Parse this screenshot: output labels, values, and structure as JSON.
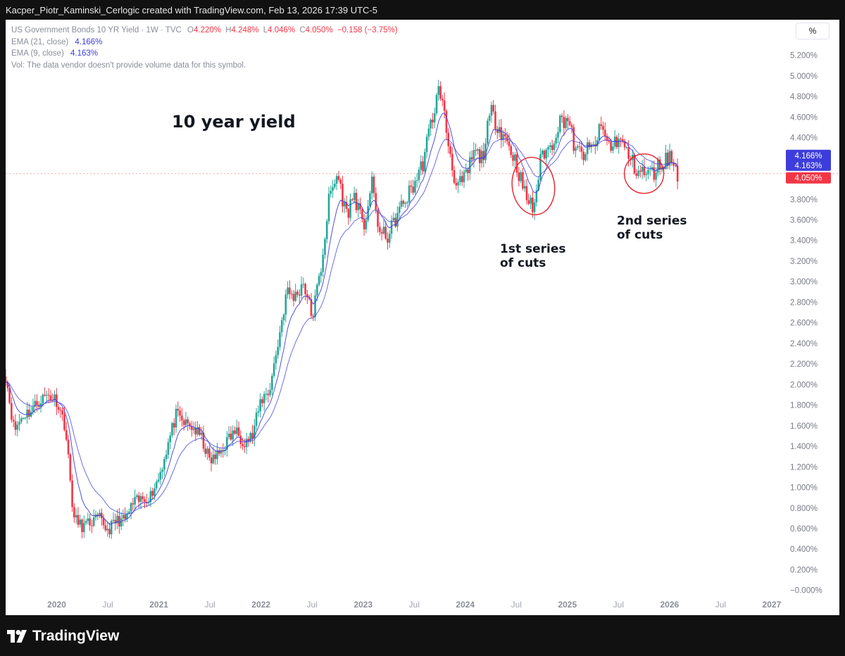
{
  "credit": "Kacper_Piotr_Kaminski_Cerlogic created with TradingView.com, Feb 13, 2026 17:39 UTC-5",
  "legend": {
    "symbol": "US Government Bonds 10 YR Yield · 1W · TVC",
    "o_label": "O",
    "o_value": "4.220%",
    "h_label": "H",
    "h_value": "4.248%",
    "l_label": "L",
    "l_value": "4.046%",
    "c_label": "C",
    "c_value": "4.050%",
    "change": "−0.158 (−3.75%)",
    "ema21_label": "EMA (21, close)",
    "ema21_value": "4.166%",
    "ema9_label": "EMA (9, close)",
    "ema9_value": "4.163%",
    "vol_note": "Vol: The data vendor doesn't provide volume data for this symbol."
  },
  "scale_button": "%",
  "annotations": {
    "title": "10 year yield",
    "first_line1": "1st series",
    "first_line2": "of cuts",
    "second_line1": "2nd series",
    "second_line2": "of cuts"
  },
  "footer": {
    "brand": "TradingView"
  },
  "colors": {
    "up": "#26a69a",
    "down": "#f23645",
    "ema": "#3d3ddb",
    "marker": "#e8202a"
  },
  "chart_data": {
    "type": "line",
    "chart_kind": "candlestick",
    "interval": "1W",
    "y_unit": "%",
    "y_scale": "linear",
    "ylim": [
      -0.05,
      5.3
    ],
    "y_ticks": [
      "5.200%",
      "5.000%",
      "4.800%",
      "4.600%",
      "4.400%",
      "4.200%",
      "4.000%",
      "3.800%",
      "3.600%",
      "3.400%",
      "3.200%",
      "3.000%",
      "2.800%",
      "2.600%",
      "2.400%",
      "2.200%",
      "2.000%",
      "1.800%",
      "1.600%",
      "1.400%",
      "1.200%",
      "1.000%",
      "0.800%",
      "0.600%",
      "0.400%",
      "0.200%",
      "−0.000%"
    ],
    "x_range": [
      "2019-07",
      "2027-02"
    ],
    "x_ticks": [
      {
        "date": "2020-01",
        "label": "2020",
        "major": true
      },
      {
        "date": "2020-07",
        "label": "Jul",
        "major": false
      },
      {
        "date": "2021-01",
        "label": "2021",
        "major": true
      },
      {
        "date": "2021-07",
        "label": "Jul",
        "major": false
      },
      {
        "date": "2022-01",
        "label": "2022",
        "major": true
      },
      {
        "date": "2022-07",
        "label": "Jul",
        "major": false
      },
      {
        "date": "2023-01",
        "label": "2023",
        "major": true
      },
      {
        "date": "2023-07",
        "label": "Jul",
        "major": false
      },
      {
        "date": "2024-01",
        "label": "2024",
        "major": true
      },
      {
        "date": "2024-07",
        "label": "Jul",
        "major": false
      },
      {
        "date": "2025-01",
        "label": "2025",
        "major": true
      },
      {
        "date": "2025-07",
        "label": "Jul",
        "major": false
      },
      {
        "date": "2026-01",
        "label": "2026",
        "major": true
      },
      {
        "date": "2026-07",
        "label": "Jul",
        "major": false
      },
      {
        "date": "2027-01",
        "label": "2027",
        "major": true
      }
    ],
    "close_series": [
      [
        "2019-07",
        2.1
      ],
      [
        "2019-08",
        1.55
      ],
      [
        "2019-09",
        1.7
      ],
      [
        "2019-10",
        1.75
      ],
      [
        "2019-11",
        1.85
      ],
      [
        "2019-12",
        1.9
      ],
      [
        "2020-01",
        1.85
      ],
      [
        "2020-02",
        1.6
      ],
      [
        "2020-03",
        0.7
      ],
      [
        "2020-04",
        0.62
      ],
      [
        "2020-05",
        0.66
      ],
      [
        "2020-06",
        0.7
      ],
      [
        "2020-07",
        0.58
      ],
      [
        "2020-08",
        0.68
      ],
      [
        "2020-09",
        0.68
      ],
      [
        "2020-10",
        0.85
      ],
      [
        "2020-11",
        0.88
      ],
      [
        "2020-12",
        0.92
      ],
      [
        "2021-01",
        1.1
      ],
      [
        "2021-02",
        1.4
      ],
      [
        "2021-03",
        1.7
      ],
      [
        "2021-04",
        1.62
      ],
      [
        "2021-05",
        1.58
      ],
      [
        "2021-06",
        1.48
      ],
      [
        "2021-07",
        1.25
      ],
      [
        "2021-08",
        1.32
      ],
      [
        "2021-09",
        1.45
      ],
      [
        "2021-10",
        1.55
      ],
      [
        "2021-11",
        1.45
      ],
      [
        "2021-12",
        1.5
      ],
      [
        "2022-01",
        1.85
      ],
      [
        "2022-02",
        1.95
      ],
      [
        "2022-03",
        2.4
      ],
      [
        "2022-04",
        2.9
      ],
      [
        "2022-05",
        2.85
      ],
      [
        "2022-06",
        3.0
      ],
      [
        "2022-07",
        2.65
      ],
      [
        "2022-08",
        3.1
      ],
      [
        "2022-09",
        3.8
      ],
      [
        "2022-10",
        4.05
      ],
      [
        "2022-11",
        3.65
      ],
      [
        "2022-12",
        3.85
      ],
      [
        "2023-01",
        3.5
      ],
      [
        "2023-02",
        3.95
      ],
      [
        "2023-03",
        3.45
      ],
      [
        "2023-04",
        3.45
      ],
      [
        "2023-05",
        3.65
      ],
      [
        "2023-06",
        3.8
      ],
      [
        "2023-07",
        3.95
      ],
      [
        "2023-08",
        4.15
      ],
      [
        "2023-09",
        4.55
      ],
      [
        "2023-10",
        4.9
      ],
      [
        "2023-11",
        4.35
      ],
      [
        "2023-12",
        3.9
      ],
      [
        "2024-01",
        4.0
      ],
      [
        "2024-02",
        4.25
      ],
      [
        "2024-03",
        4.2
      ],
      [
        "2024-04",
        4.65
      ],
      [
        "2024-05",
        4.5
      ],
      [
        "2024-06",
        4.35
      ],
      [
        "2024-07",
        4.15
      ],
      [
        "2024-08",
        3.85
      ],
      [
        "2024-09",
        3.7
      ],
      [
        "2024-10",
        4.25
      ],
      [
        "2024-11",
        4.3
      ],
      [
        "2024-12",
        4.55
      ],
      [
        "2025-01",
        4.6
      ],
      [
        "2025-02",
        4.25
      ],
      [
        "2025-03",
        4.25
      ],
      [
        "2025-04",
        4.3
      ],
      [
        "2025-05",
        4.5
      ],
      [
        "2025-06",
        4.3
      ],
      [
        "2025-07",
        4.4
      ],
      [
        "2025-08",
        4.25
      ],
      [
        "2025-09",
        4.1
      ],
      [
        "2025-10",
        4.05
      ],
      [
        "2025-11",
        4.05
      ],
      [
        "2025-12",
        4.15
      ],
      [
        "2026-01",
        4.22
      ],
      [
        "2026-02",
        4.05
      ]
    ],
    "ema_lines": [
      {
        "name": "EMA (21, close)",
        "value": "4.166%"
      },
      {
        "name": "EMA (9, close)",
        "value": "4.163%"
      }
    ],
    "price_labels": [
      {
        "value": "4.166%",
        "color": "#3d3ddb"
      },
      {
        "value": "4.163%",
        "color": "#3d3ddb"
      },
      {
        "value": "4.050%",
        "color": "#f23645"
      }
    ]
  }
}
